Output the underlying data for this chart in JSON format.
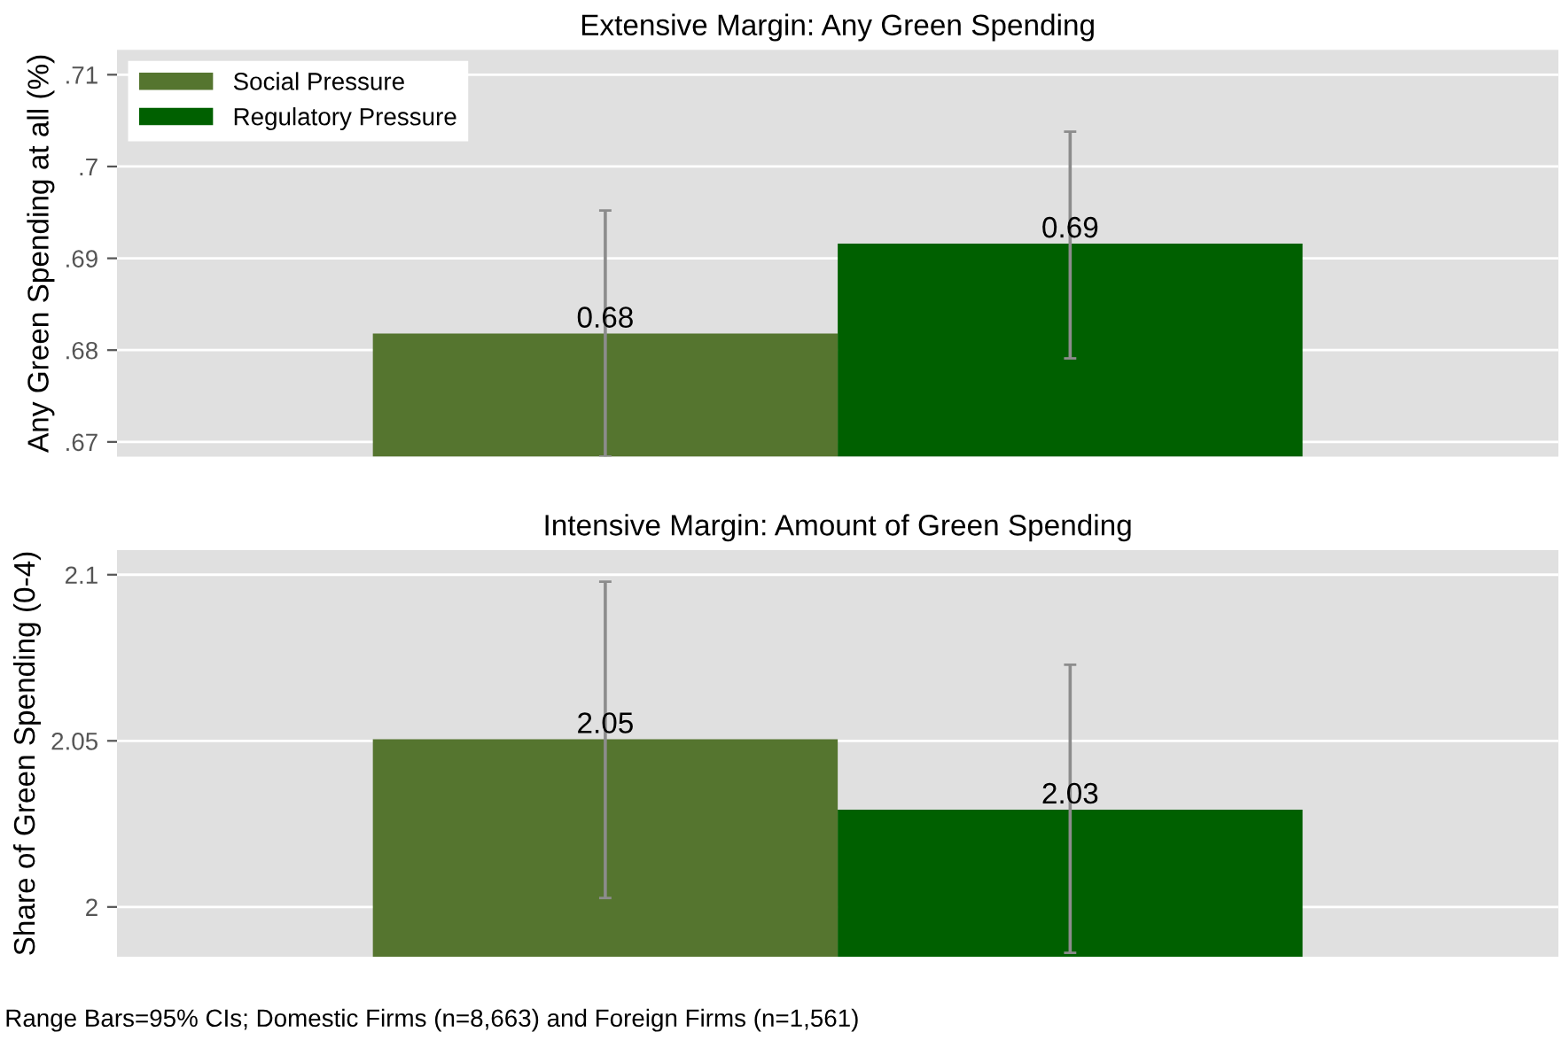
{
  "chart_data": [
    {
      "type": "bar",
      "title": "Extensive Margin: Any Green Spending",
      "ylabel": "Any Green Spending at all (%)",
      "categories": [
        null
      ],
      "series": [
        {
          "name": "Social Pressure",
          "color": "#55752f",
          "values": [
            0.6818
          ],
          "errors": [
            [
              0.6684,
              0.6952
            ]
          ],
          "value_labels": [
            "0.68"
          ]
        },
        {
          "name": "Regulatory Pressure",
          "color": "#006000",
          "values": [
            0.6916
          ],
          "errors": [
            [
              0.6791,
              0.7038
            ]
          ],
          "value_labels": [
            "0.69"
          ]
        }
      ],
      "ylim": [
        0.6684,
        0.7127
      ],
      "yticks": [
        {
          "value": 0.67,
          "label": ".67"
        },
        {
          "value": 0.68,
          "label": ".68"
        },
        {
          "value": 0.69,
          "label": ".69"
        },
        {
          "value": 0.7,
          "label": ".7"
        },
        {
          "value": 0.71,
          "label": ".71"
        }
      ],
      "grid": "y",
      "legend": "top left"
    },
    {
      "type": "bar",
      "title": "Intensive Margin: Amount of Green Spending",
      "ylabel": "Share of Green Spending (0-4)",
      "categories": [
        null
      ],
      "series": [
        {
          "color": "#55752f",
          "values": [
            2.0505
          ],
          "errors": [
            [
              2.0027,
              2.0979
            ]
          ],
          "value_labels": [
            "2.05"
          ]
        },
        {
          "color": "#006000",
          "values": [
            2.0293
          ],
          "errors": [
            [
              1.9862,
              2.0729
            ]
          ],
          "value_labels": [
            "2.03"
          ]
        }
      ],
      "ylim": [
        1.985,
        2.1074
      ],
      "yticks": [
        2,
        2.05,
        2.1
      ],
      "grid": "y",
      "legend": false,
      "annotations": [
        "Range Bars=95% CIs; Domestic Firms (n=8,663) and Foreign Firms (n=1,561)"
      ]
    }
  ]
}
